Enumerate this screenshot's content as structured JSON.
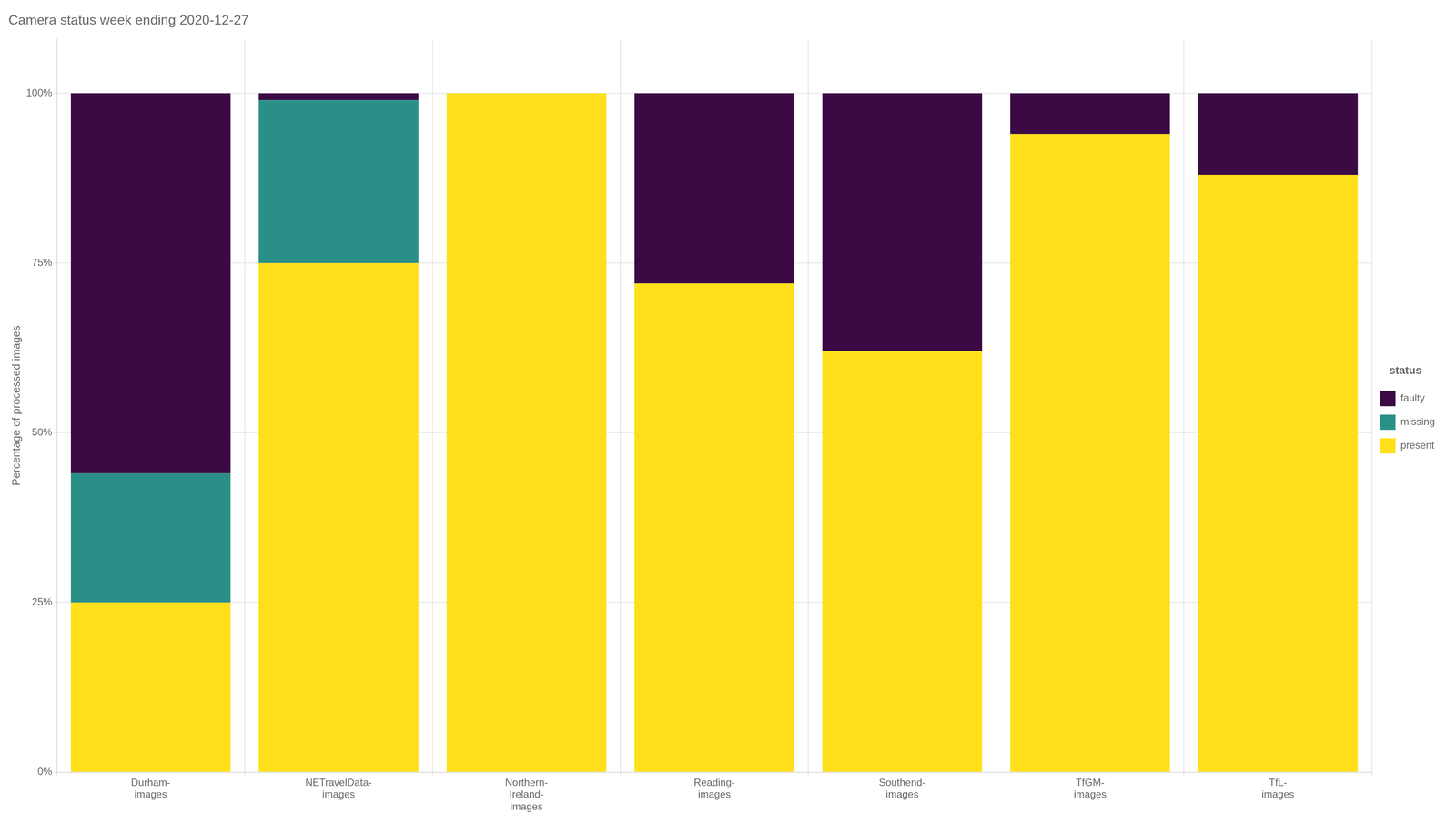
{
  "chart_data": {
    "type": "bar",
    "stacked": true,
    "title": "Camera status week ending 2020-12-27",
    "ylabel": "Percentage of processed images",
    "legend_title": "status",
    "legend": "right",
    "grid": true,
    "categories": [
      "Durham-\nimages",
      "NETravelData-\nimages",
      "Northern-\nIreland-\nimages",
      "Reading-\nimages",
      "Southend-\nimages",
      "TfGM-\nimages",
      "TfL-\nimages"
    ],
    "series": [
      {
        "name": "present",
        "color": "#FFE01A",
        "values": [
          0.25,
          0.75,
          1.0,
          0.72,
          0.62,
          0.94,
          0.88
        ]
      },
      {
        "name": "missing",
        "color": "#2A9087",
        "values": [
          0.19,
          0.24,
          0.0,
          0.0,
          0.0,
          0.0,
          0.0
        ]
      },
      {
        "name": "faulty",
        "color": "#3B0A45",
        "values": [
          0.56,
          0.01,
          0.0,
          0.28,
          0.38,
          0.06,
          0.12
        ]
      }
    ],
    "ylim": [
      0,
      1.08
    ],
    "yticks": [
      {
        "value": 0,
        "label": "0%"
      },
      {
        "value": 0.25,
        "label": "25%"
      },
      {
        "value": 0.5,
        "label": "50%"
      },
      {
        "value": 0.75,
        "label": "75%"
      },
      {
        "value": 1.0,
        "label": "100%"
      }
    ]
  }
}
